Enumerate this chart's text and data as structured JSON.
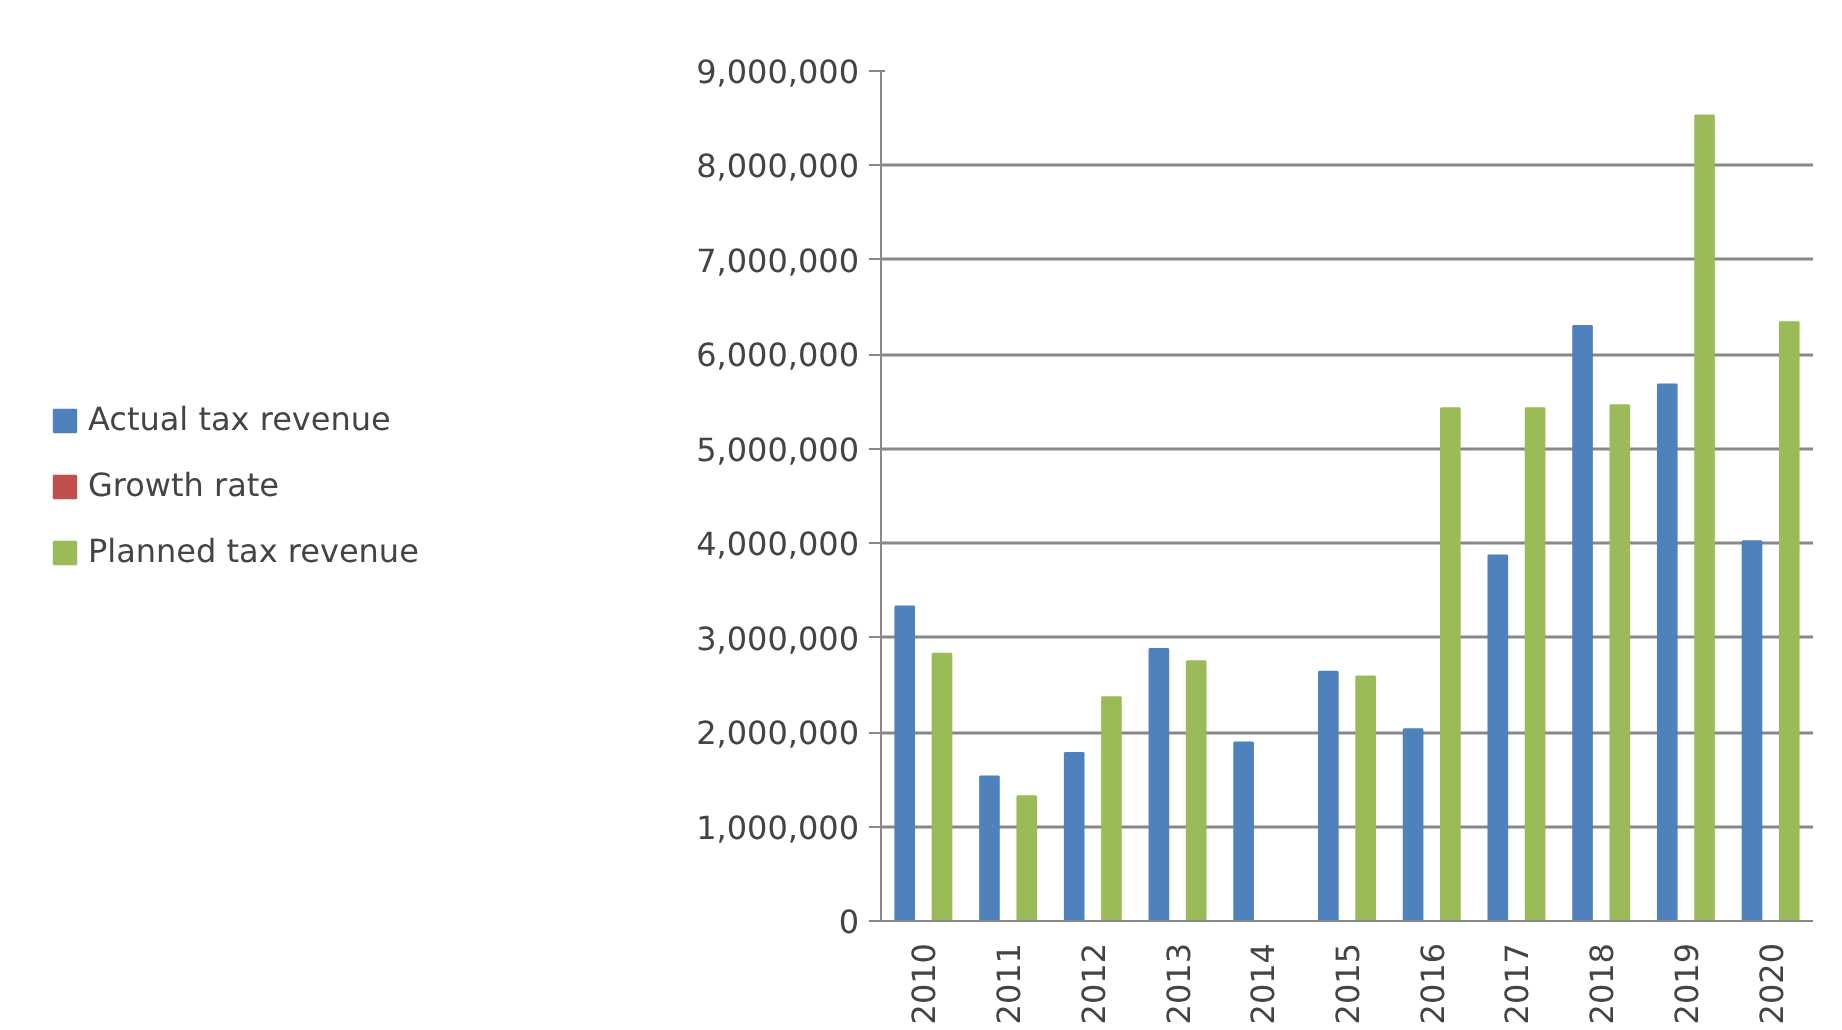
{
  "chart_data": {
    "type": "bar",
    "categories": [
      "2010",
      "2011",
      "2012",
      "2013",
      "2014",
      "2015",
      "2016",
      "2017",
      "2018",
      "2019",
      "2020"
    ],
    "series": [
      {
        "name": "Actual tax revenue",
        "color": "#4f81bd",
        "values": [
          3330000,
          1530000,
          1780000,
          2880000,
          1890000,
          2640000,
          2030000,
          3870000,
          6300000,
          5680000,
          4020000
        ]
      },
      {
        "name": "Growth rate",
        "color": "#c0504d",
        "values": [
          null,
          null,
          null,
          null,
          null,
          null,
          null,
          null,
          null,
          null,
          null
        ]
      },
      {
        "name": "Planned tax revenue",
        "color": "#9bbb59",
        "values": [
          2830000,
          1320000,
          2370000,
          2750000,
          null,
          2590000,
          5430000,
          5430000,
          5460000,
          8530000,
          6340000
        ]
      }
    ],
    "ylim": [
      0,
      9000000
    ],
    "yticks": [
      0,
      {
        "value": 1000000,
        "label": "1,000,000"
      },
      {
        "value": 2000000,
        "label": "2,000,000"
      },
      {
        "value": 3000000,
        "label": "3,000,000"
      },
      {
        "value": 4000000,
        "label": "4,000,000"
      },
      {
        "value": 5000000,
        "label": "5,000,000"
      },
      {
        "value": 6000000,
        "label": "6,000,000"
      },
      {
        "value": 7000000,
        "label": "7,000,000"
      },
      {
        "value": 8000000,
        "label": "8,000,000"
      },
      {
        "value": 9000000,
        "label": "9,000,000"
      }
    ],
    "grid": "y",
    "legend": "left"
  }
}
